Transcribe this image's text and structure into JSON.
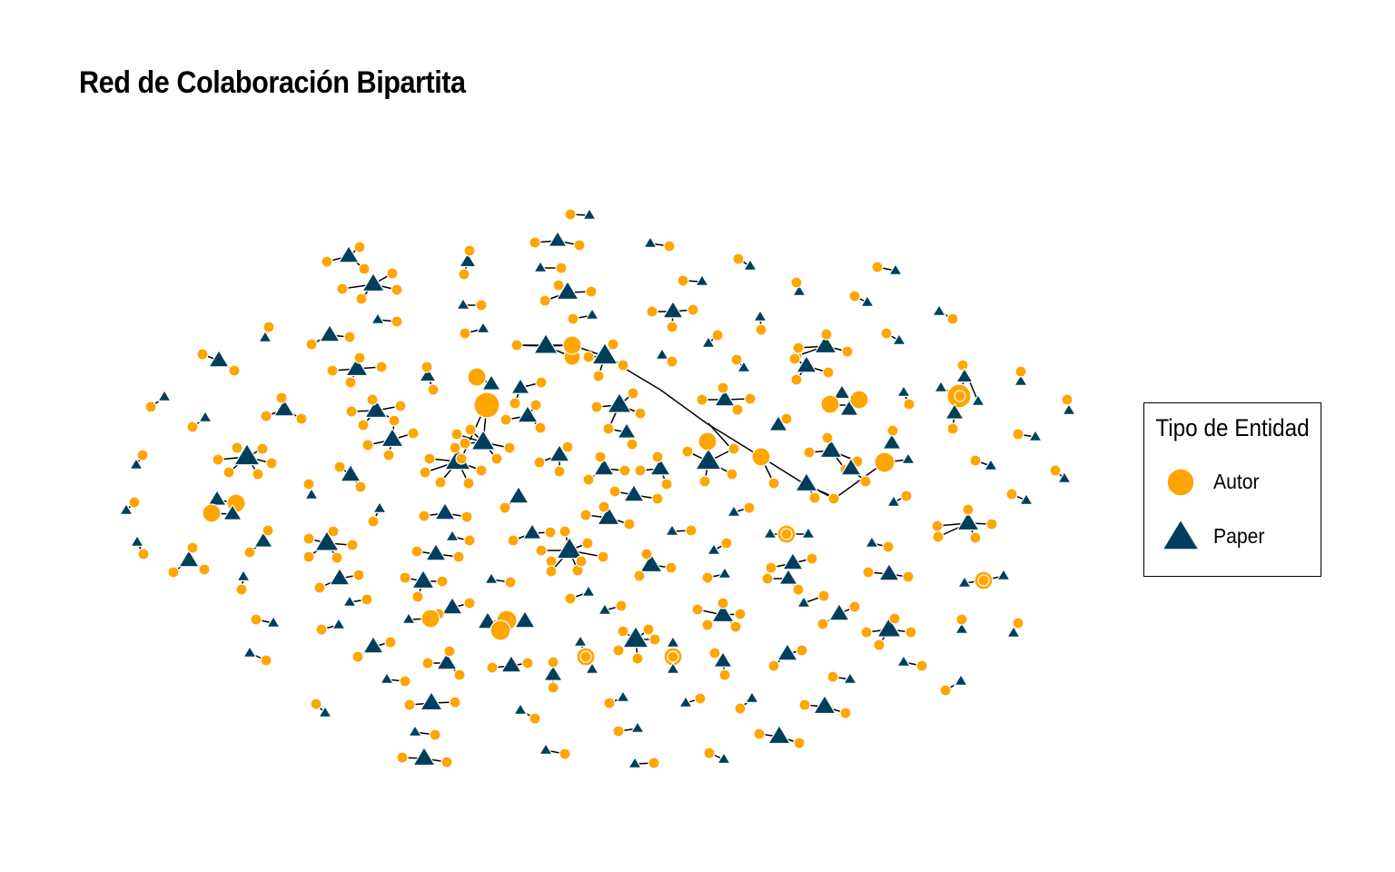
{
  "title": "Red de Colaboración Bipartita",
  "legend": {
    "title": "Tipo de Entidad",
    "items": [
      {
        "label": "Autor",
        "shape": "circle",
        "color": "#FFA500"
      },
      {
        "label": "Paper",
        "shape": "triangle",
        "color": "#003F5C"
      }
    ]
  },
  "colors": {
    "autor": "#FFA500",
    "paper": "#003F5C",
    "edge": "#000000",
    "outline": "#ffffff"
  }
}
